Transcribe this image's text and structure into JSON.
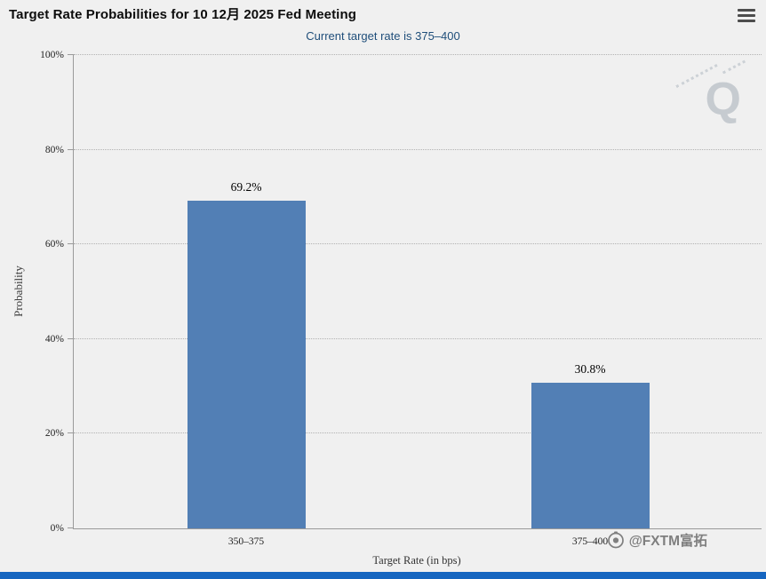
{
  "header": {
    "title": "Target Rate Probabilities for 10 12月 2025 Fed Meeting",
    "subtitle": "Current target rate is 375–400"
  },
  "menu": {
    "icon": "hamburger-icon"
  },
  "chart_data": {
    "type": "bar",
    "title": "Target Rate Probabilities for 10 12月 2025 Fed Meeting",
    "subtitle": "Current target rate is 375–400",
    "categories": [
      "350–375",
      "375–400"
    ],
    "values": [
      69.2,
      30.8
    ],
    "value_labels": [
      "69.2%",
      "30.8%"
    ],
    "xlabel": "Target Rate (in bps)",
    "ylabel": "Probability",
    "ylim": [
      0,
      100
    ],
    "ytick_labels": [
      "0%",
      "20%",
      "40%",
      "60%",
      "80%",
      "100%"
    ],
    "grid": {
      "horizontal": true,
      "style": "dotted"
    },
    "legend": "none",
    "bar_color": "#527FB5"
  },
  "watermarks": {
    "logo_letter": "Q",
    "brand": "@FXTM富拓",
    "camera_icon": "camera-icon"
  },
  "colors": {
    "background": "#F0F0F0",
    "bar": "#527FB5",
    "subtitle_text": "#1F4E7A",
    "bottom_bar": "#1565C0",
    "grid": "#B2B2B2"
  }
}
